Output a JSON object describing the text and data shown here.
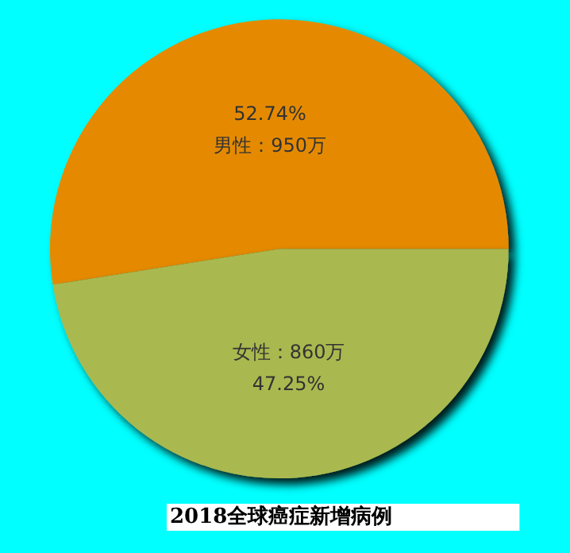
{
  "chart_data": {
    "type": "pie",
    "title": "2018全球癌症新增病例",
    "categories": [
      "男性",
      "女性"
    ],
    "values": [
      950,
      860
    ],
    "colors": [
      "#e58a00",
      "#a9b94f"
    ],
    "value_labels": [
      "950万",
      "860万"
    ],
    "annotations": [
      {
        "text": "52.74%",
        "x": "男性"
      },
      {
        "text": "47.25%",
        "x": "女性"
      }
    ],
    "legend": false
  }
}
